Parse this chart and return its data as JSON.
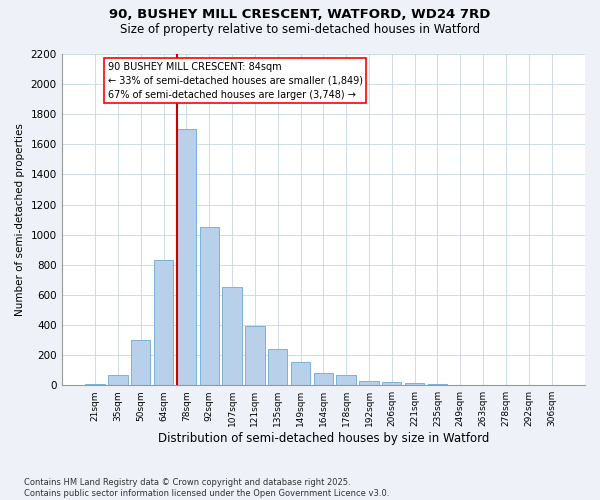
{
  "title1": "90, BUSHEY MILL CRESCENT, WATFORD, WD24 7RD",
  "title2": "Size of property relative to semi-detached houses in Watford",
  "xlabel": "Distribution of semi-detached houses by size in Watford",
  "ylabel": "Number of semi-detached properties",
  "categories": [
    "21sqm",
    "35sqm",
    "50sqm",
    "64sqm",
    "78sqm",
    "92sqm",
    "107sqm",
    "121sqm",
    "135sqm",
    "149sqm",
    "164sqm",
    "178sqm",
    "192sqm",
    "206sqm",
    "221sqm",
    "235sqm",
    "249sqm",
    "263sqm",
    "278sqm",
    "292sqm",
    "306sqm"
  ],
  "values": [
    10,
    70,
    300,
    830,
    1700,
    1050,
    650,
    390,
    240,
    155,
    80,
    70,
    30,
    20,
    15,
    5,
    3,
    2,
    1,
    1,
    1
  ],
  "bar_color": "#b8d0ea",
  "bar_edge_color": "#6aaad4",
  "vline_color": "#cc0000",
  "vline_index": 4,
  "annotation_box_text": "90 BUSHEY MILL CRESCENT: 84sqm\n← 33% of semi-detached houses are smaller (1,849)\n67% of semi-detached houses are larger (3,748) →",
  "ylim": [
    0,
    2200
  ],
  "yticks": [
    0,
    200,
    400,
    600,
    800,
    1000,
    1200,
    1400,
    1600,
    1800,
    2000,
    2200
  ],
  "footer": "Contains HM Land Registry data © Crown copyright and database right 2025.\nContains public sector information licensed under the Open Government Licence v3.0.",
  "bg_color": "#eef2f8",
  "plot_bg_color": "#ffffff",
  "grid_color": "#c5d5e5"
}
